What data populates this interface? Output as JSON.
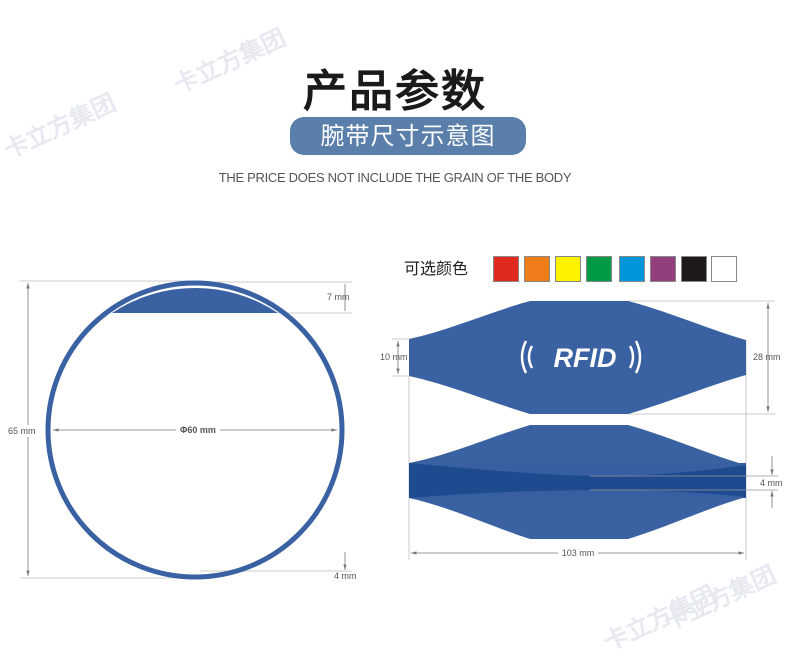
{
  "watermark": {
    "text": "卡立方集团"
  },
  "header": {
    "title": "产品参数",
    "subtitle_pill": "腕带尺寸示意图",
    "note": "THE PRICE DOES NOT INCLUDE THE GRAIN OF THE BODY"
  },
  "colors": {
    "label": "可选颜色",
    "swatches": [
      "#e02a1f",
      "#ef7d1a",
      "#fff200",
      "#009a44",
      "#0096dc",
      "#943f7d",
      "#1e1a1a",
      "#ffffff"
    ]
  },
  "band_color": "#3a62a3",
  "band_dark_color": "#1e4a8f",
  "circle_view": {
    "outer_diameter": "65 mm",
    "inner_diameter": "Φ60 mm",
    "cap_height": "7 mm",
    "thickness": "4 mm"
  },
  "flat_view": {
    "logo_text": "RFID",
    "end_width": "10 mm",
    "max_width": "28 mm",
    "thickness": "4 mm",
    "length": "103 mm"
  }
}
